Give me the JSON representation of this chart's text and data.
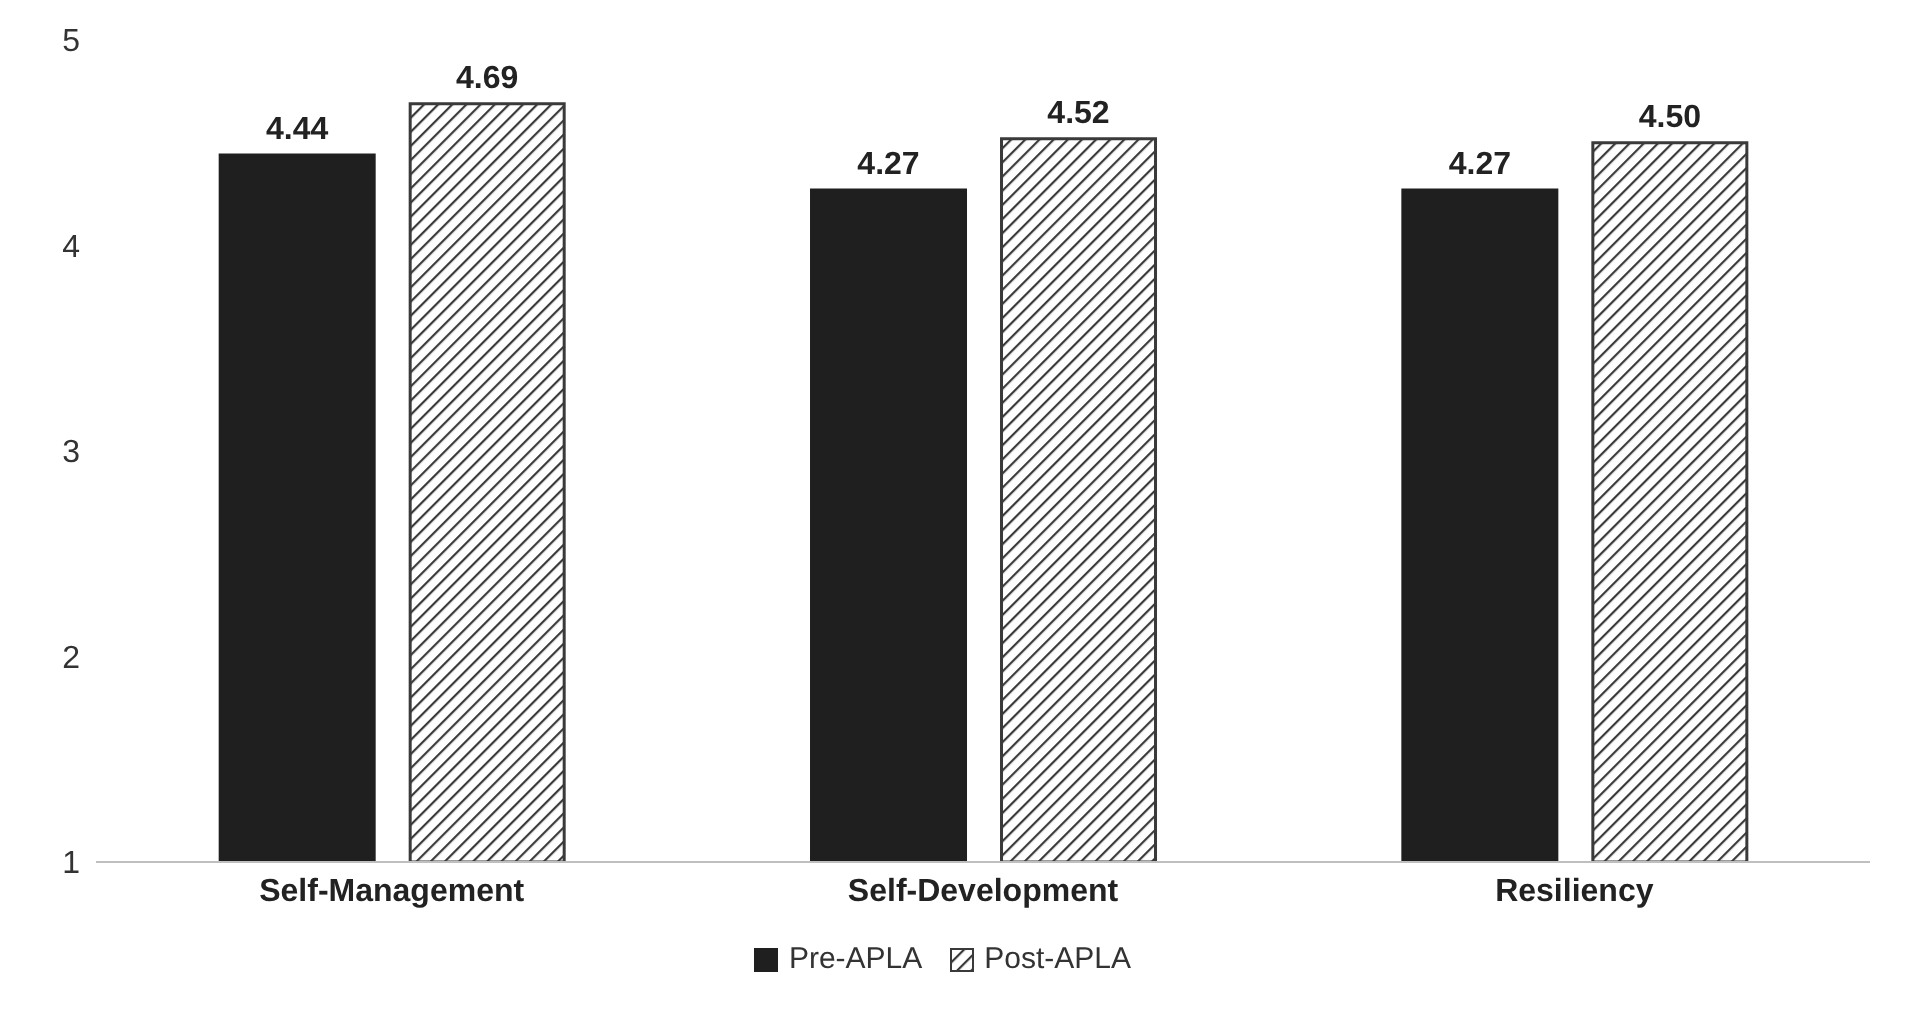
{
  "chart_data": {
    "type": "bar",
    "categories": [
      "Self-Management",
      "Self-Development",
      "Resiliency"
    ],
    "series": [
      {
        "name": "Pre-APLA",
        "color": "#1f1f1f",
        "values": [
          4.44,
          4.27,
          4.27
        ],
        "value_labels": [
          "4.44",
          "4.27",
          "4.27"
        ]
      },
      {
        "name": "Post-APLA",
        "color": "#3a3a3a",
        "values": [
          4.69,
          4.52,
          4.5
        ],
        "value_labels": [
          "4.69",
          "4.52",
          "4.50"
        ]
      }
    ],
    "ylim": [
      1,
      5
    ],
    "yticks": [
      1,
      2,
      3,
      4,
      5
    ],
    "grid": false,
    "legend": "bottom"
  }
}
